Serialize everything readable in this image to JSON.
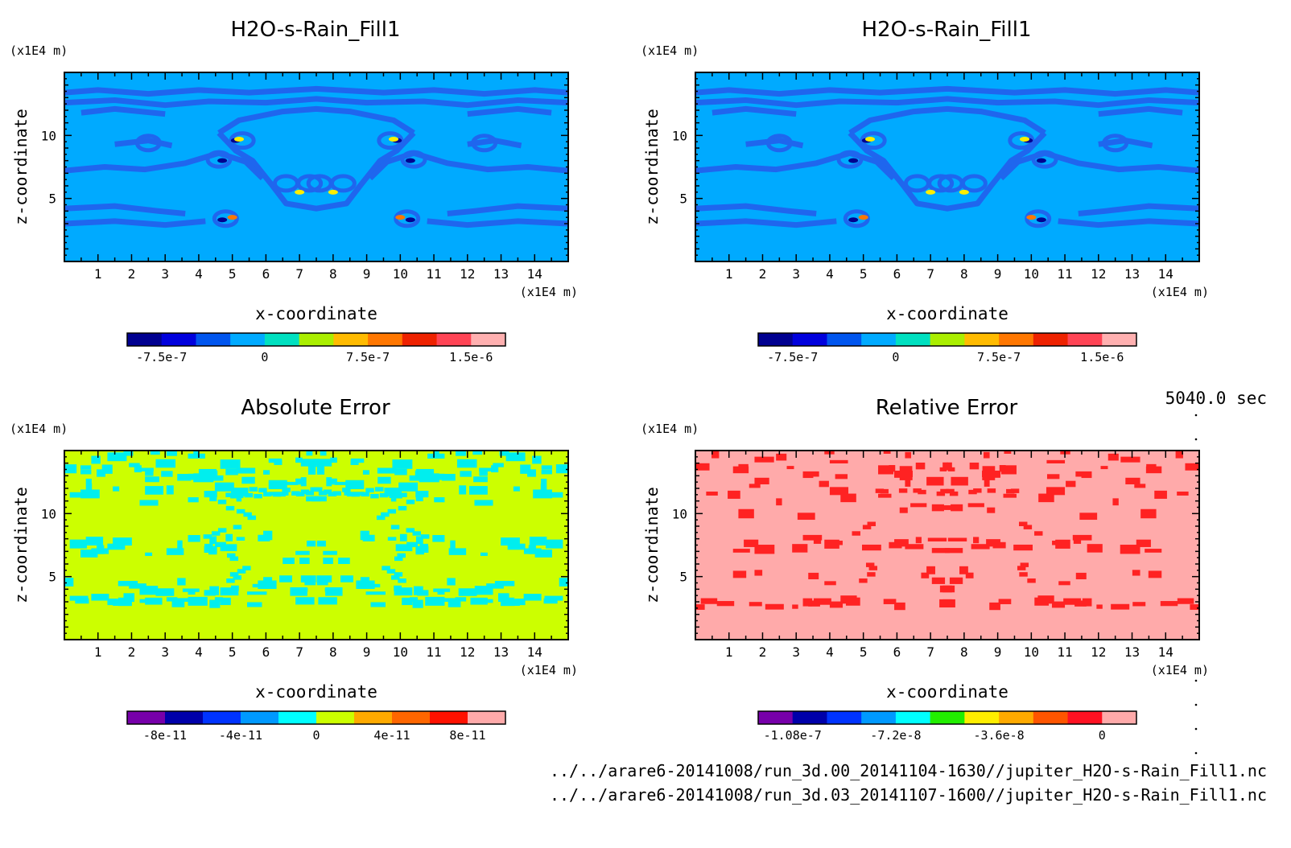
{
  "figure": {
    "timestamp": "5040.0 sec",
    "files": [
      "../../arare6-20141008/run_3d.00_20141104-1630//jupiter_H2O-s-Rain_Fill1.nc",
      "../../arare6-20141008/run_3d.03_20141107-1600//jupiter_H2O-s-Rain_Fill1.nc"
    ]
  },
  "chart_data": [
    {
      "type": "heatmap",
      "title": "H2O-s-Rain_Fill1",
      "xlabel": "x-coordinate",
      "ylabel": "z-coordinate",
      "x_unit": "(x1E4 m)",
      "y_unit": "(x1E4 m)",
      "xlim": [
        0,
        15
      ],
      "ylim": [
        0,
        15
      ],
      "xticks": [
        "1",
        "2",
        "3",
        "4",
        "5",
        "6",
        "7",
        "8",
        "9",
        "10",
        "11",
        "12",
        "13",
        "14"
      ],
      "yticks": [
        "5",
        "10"
      ],
      "background_color": "#00aaff",
      "pattern": "rain",
      "contour_color": "#1f66ee",
      "colorbar": {
        "colors": [
          "#000090",
          "#0000dd",
          "#0055ee",
          "#00aaff",
          "#00e0c0",
          "#aaee00",
          "#ffbb00",
          "#ff7700",
          "#ee2200",
          "#ff4455",
          "#ffb0b0"
        ],
        "tick_labels": [
          "-7.5e-7",
          "0",
          "7.5e-7",
          "1.5e-6"
        ]
      }
    },
    {
      "type": "heatmap",
      "title": "H2O-s-Rain_Fill1",
      "xlabel": "x-coordinate",
      "ylabel": "z-coordinate",
      "x_unit": "(x1E4 m)",
      "y_unit": "(x1E4 m)",
      "xlim": [
        0,
        15
      ],
      "ylim": [
        0,
        15
      ],
      "xticks": [
        "1",
        "2",
        "3",
        "4",
        "5",
        "6",
        "7",
        "8",
        "9",
        "10",
        "11",
        "12",
        "13",
        "14"
      ],
      "yticks": [
        "5",
        "10"
      ],
      "background_color": "#00aaff",
      "pattern": "rain",
      "contour_color": "#1f66ee",
      "colorbar": {
        "colors": [
          "#000090",
          "#0000dd",
          "#0055ee",
          "#00aaff",
          "#00e0c0",
          "#aaee00",
          "#ffbb00",
          "#ff7700",
          "#ee2200",
          "#ff4455",
          "#ffb0b0"
        ],
        "tick_labels": [
          "-7.5e-7",
          "0",
          "7.5e-7",
          "1.5e-6"
        ]
      }
    },
    {
      "type": "heatmap",
      "title": "Absolute Error",
      "xlabel": "x-coordinate",
      "ylabel": "z-coordinate",
      "x_unit": "(x1E4 m)",
      "y_unit": "(x1E4 m)",
      "xlim": [
        0,
        15
      ],
      "ylim": [
        0,
        15
      ],
      "xticks": [
        "1",
        "2",
        "3",
        "4",
        "5",
        "6",
        "7",
        "8",
        "9",
        "10",
        "11",
        "12",
        "13",
        "14"
      ],
      "yticks": [
        "5",
        "10"
      ],
      "background_color": "#ccff00",
      "pattern": "abs",
      "contour_color": "#00eeee",
      "colorbar": {
        "colors": [
          "#7700aa",
          "#0000aa",
          "#0033ff",
          "#0099ff",
          "#00ffff",
          "#ccff00",
          "#ffaa00",
          "#ff6600",
          "#ff1100",
          "#ffaaaa"
        ],
        "tick_labels": [
          "-8e-11",
          "-4e-11",
          "0",
          "4e-11",
          "8e-11"
        ]
      }
    },
    {
      "type": "heatmap",
      "title": "Relative Error",
      "xlabel": "x-coordinate",
      "ylabel": "z-coordinate",
      "x_unit": "(x1E4 m)",
      "y_unit": "(x1E4 m)",
      "xlim": [
        0,
        15
      ],
      "ylim": [
        0,
        15
      ],
      "xticks": [
        "1",
        "2",
        "3",
        "4",
        "5",
        "6",
        "7",
        "8",
        "9",
        "10",
        "11",
        "12",
        "13",
        "14"
      ],
      "yticks": [
        "5",
        "10"
      ],
      "background_color": "#ffaaaa",
      "pattern": "rel",
      "contour_color": "#ff2222",
      "colorbar": {
        "colors": [
          "#7700aa",
          "#0000aa",
          "#0033ff",
          "#0099ff",
          "#00ffff",
          "#22ee00",
          "#ffee00",
          "#ffaa00",
          "#ff5500",
          "#ff1122",
          "#ffaaaa"
        ],
        "tick_labels": [
          "-1.08e-7",
          "-7.2e-8",
          "-3.6e-8",
          "0"
        ]
      }
    }
  ]
}
